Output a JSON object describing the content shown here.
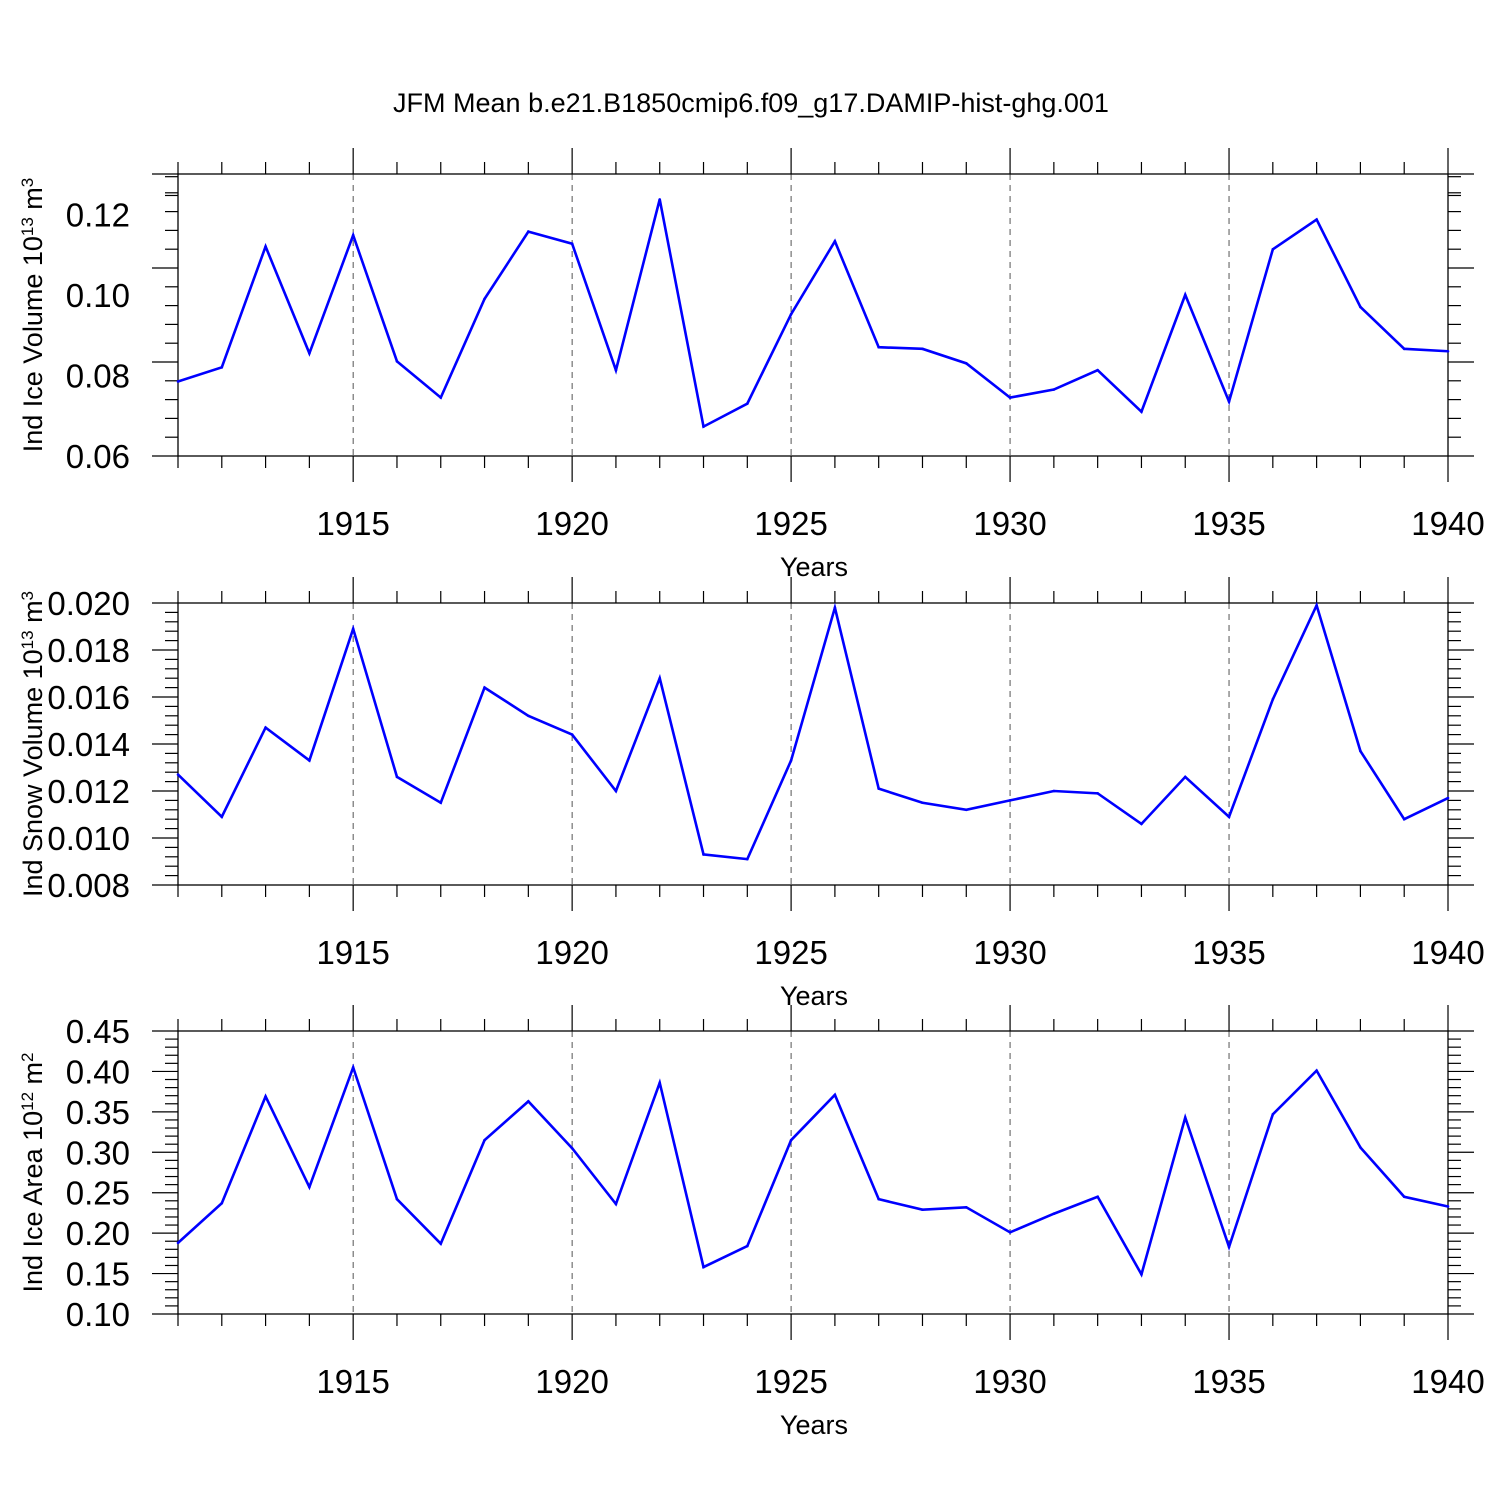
{
  "title": "JFM Mean b.e21.B1850cmip6.f09_g17.DAMIP-hist-ghg.001",
  "colors": {
    "line": "#0000ff",
    "grid": "#555555",
    "axes": "#000000"
  },
  "chart_data": [
    {
      "type": "line",
      "ylabel": "Ind Ice Volume 10",
      "ylabel_exp": "13",
      "ylabel_unit": " m",
      "ylabel_unit_exp": "3",
      "xlabel": "Years",
      "xlim": [
        1911,
        1940
      ],
      "ylim": [
        0.06,
        0.13
      ],
      "yticks": [
        "0.06",
        "0.08",
        "0.10",
        "0.12"
      ],
      "xticks": [
        "1915",
        "1920",
        "1925",
        "1930",
        "1935",
        "1940"
      ],
      "grid": "vertical dashed at major x ticks",
      "x": [
        1911,
        1912,
        1913,
        1914,
        1915,
        1916,
        1917,
        1918,
        1919,
        1920,
        1921,
        1922,
        1923,
        1924,
        1925,
        1926,
        1927,
        1928,
        1929,
        1930,
        1931,
        1932,
        1933,
        1934,
        1935,
        1936,
        1937,
        1938,
        1939,
        1940
      ],
      "y": [
        0.0785,
        0.082,
        0.112,
        0.0855,
        0.1148,
        0.0835,
        0.0745,
        0.099,
        0.1157,
        0.1127,
        0.0813,
        0.1237,
        0.0673,
        0.073,
        0.0952,
        0.1133,
        0.087,
        0.0866,
        0.083,
        0.0745,
        0.0765,
        0.0813,
        0.071,
        0.1,
        0.0735,
        0.1113,
        0.1187,
        0.097,
        0.0866,
        0.086
      ]
    },
    {
      "type": "line",
      "ylabel": "Ind Snow Volume 10",
      "ylabel_exp": "13",
      "ylabel_unit": " m",
      "ylabel_unit_exp": "3",
      "xlabel": "Years",
      "xlim": [
        1911,
        1940
      ],
      "ylim": [
        0.008,
        0.02
      ],
      "yticks": [
        "0.008",
        "0.010",
        "0.012",
        "0.014",
        "0.016",
        "0.018",
        "0.020"
      ],
      "xticks": [
        "1915",
        "1920",
        "1925",
        "1930",
        "1935",
        "1940"
      ],
      "grid": "vertical dashed at major x ticks",
      "x": [
        1911,
        1912,
        1913,
        1914,
        1915,
        1916,
        1917,
        1918,
        1919,
        1920,
        1921,
        1922,
        1923,
        1924,
        1925,
        1926,
        1927,
        1928,
        1929,
        1930,
        1931,
        1932,
        1933,
        1934,
        1935,
        1936,
        1937,
        1938,
        1939,
        1940
      ],
      "y": [
        0.0127,
        0.0109,
        0.0147,
        0.0133,
        0.0189,
        0.0126,
        0.0115,
        0.0164,
        0.0152,
        0.0144,
        0.012,
        0.0168,
        0.0093,
        0.0091,
        0.0133,
        0.0198,
        0.0121,
        0.0115,
        0.0112,
        0.0116,
        0.012,
        0.0119,
        0.0106,
        0.0126,
        0.0109,
        0.0159,
        0.0199,
        0.0137,
        0.0108,
        0.0117
      ]
    },
    {
      "type": "line",
      "ylabel": "Ind Ice Area 10",
      "ylabel_exp": "12",
      "ylabel_unit": " m",
      "ylabel_unit_exp": "2",
      "xlabel": "Years",
      "xlim": [
        1911,
        1940
      ],
      "ylim": [
        0.1,
        0.45
      ],
      "yticks": [
        "0.10",
        "0.15",
        "0.20",
        "0.25",
        "0.30",
        "0.35",
        "0.40",
        "0.45"
      ],
      "xticks": [
        "1915",
        "1920",
        "1925",
        "1930",
        "1935",
        "1940"
      ],
      "grid": "vertical dashed at major x ticks",
      "x": [
        1911,
        1912,
        1913,
        1914,
        1915,
        1916,
        1917,
        1918,
        1919,
        1920,
        1921,
        1922,
        1923,
        1924,
        1925,
        1926,
        1927,
        1928,
        1929,
        1930,
        1931,
        1932,
        1933,
        1934,
        1935,
        1936,
        1937,
        1938,
        1939,
        1940
      ],
      "y": [
        0.188,
        0.237,
        0.369,
        0.257,
        0.405,
        0.242,
        0.187,
        0.315,
        0.363,
        0.305,
        0.236,
        0.386,
        0.158,
        0.184,
        0.315,
        0.371,
        0.242,
        0.229,
        0.232,
        0.201,
        0.224,
        0.245,
        0.149,
        0.343,
        0.183,
        0.347,
        0.401,
        0.306,
        0.245,
        0.233
      ]
    }
  ]
}
